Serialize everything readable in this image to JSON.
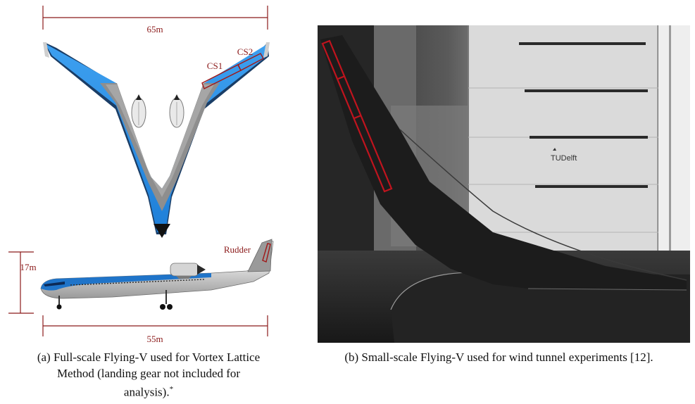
{
  "figure": {
    "top_view": {
      "span_label": "65m",
      "cs1_label": "CS1",
      "cs2_label": "CS2"
    },
    "side_view": {
      "height_label": "17m",
      "length_label": "55m",
      "rudder_label": "Rudder"
    },
    "photo": {
      "logo_text": "TUDelft"
    },
    "captions": {
      "a_line1": "(a) Full-scale Flying-V used for Vortex Lattice",
      "a_line2": "Method (landing gear not included for",
      "a_line3": "analysis).",
      "a_mark": "*",
      "b": "(b) Small-scale Flying-V used for wind tunnel experiments [12]."
    },
    "colors": {
      "dimension_lines": "#8b1a1a",
      "livery_blue": "#2f8fe6",
      "wing_grey": "#8e8e8e",
      "photo_background": "#4a4a4a"
    }
  }
}
